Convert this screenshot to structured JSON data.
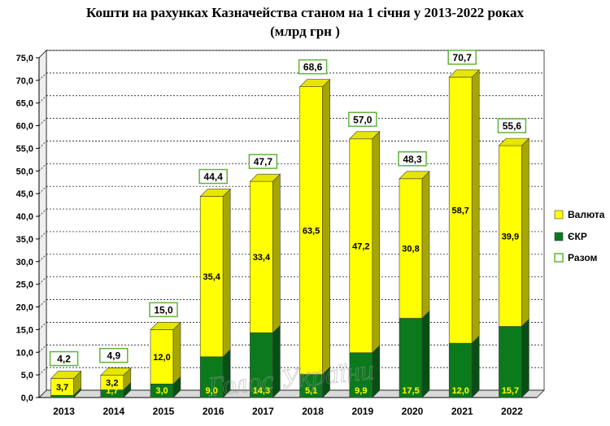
{
  "chart_data": {
    "type": "bar",
    "stacked": true,
    "title_line1": "Кошти на рахунках Казначейства станом на 1 січня у 2013-2022 роках",
    "title_line2": "(млрд грн )",
    "categories": [
      "2013",
      "2014",
      "2015",
      "2016",
      "2017",
      "2018",
      "2019",
      "2020",
      "2021",
      "2022"
    ],
    "series": [
      {
        "name": "ЄКР",
        "color": "#0b7a1d",
        "values": [
          0.5,
          1.7,
          3.0,
          9.0,
          14.3,
          5.1,
          9.9,
          17.5,
          12.0,
          15.7
        ],
        "labels": [
          "",
          "1,7",
          "3,0",
          "9,0",
          "14,3",
          "5,1",
          "9,9",
          "17,5",
          "12,0",
          "15,7"
        ]
      },
      {
        "name": "Валюта",
        "color": "#ffff00",
        "values": [
          3.7,
          3.2,
          12.0,
          35.4,
          33.4,
          63.5,
          47.2,
          30.8,
          58.7,
          39.9
        ],
        "labels": [
          "3,7",
          "3,2",
          "12,0",
          "35,4",
          "33,4",
          "63,5",
          "47,2",
          "30,8",
          "58,7",
          "39,9"
        ]
      }
    ],
    "totals": {
      "name": "Разом",
      "values": [
        4.2,
        4.9,
        15.0,
        44.4,
        47.7,
        68.6,
        57.0,
        48.3,
        70.7,
        55.6
      ],
      "labels": [
        "4,2",
        "4,9",
        "15,0",
        "44,4",
        "47,7",
        "68,6",
        "57,0",
        "48,3",
        "70,7",
        "55,6"
      ]
    },
    "legend": [
      {
        "name": "Валюта",
        "color": "#ffff00"
      },
      {
        "name": "ЄКР",
        "color": "#0b7a1d"
      },
      {
        "name": "Разом",
        "color": "#ffffff"
      }
    ],
    "legend_position": "right",
    "ylim": [
      0,
      75
    ],
    "ytick_step": 5,
    "yticks": [
      "0,0",
      "5,0",
      "10,0",
      "15,0",
      "20,0",
      "25,0",
      "30,0",
      "35,0",
      "40,0",
      "45,0",
      "50,0",
      "55,0",
      "60,0",
      "65,0",
      "70,0",
      "75,0"
    ],
    "grid": true,
    "total_box_color": "#5fb53a",
    "watermark": "Голос України"
  }
}
